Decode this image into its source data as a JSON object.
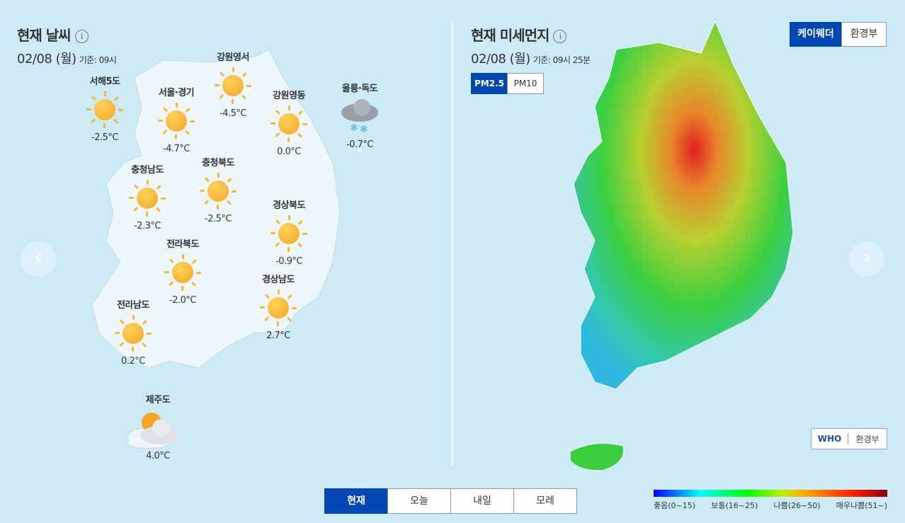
{
  "weather": {
    "title": "현재 날씨",
    "info_icon": "info-icon",
    "date": "02/08 (월)",
    "basis": "기준: 09시",
    "regions": [
      {
        "name": "서해5도",
        "temp": "-2.5°C",
        "icon": "sunny"
      },
      {
        "name": "서울·경기",
        "temp": "-4.7°C",
        "icon": "sunny"
      },
      {
        "name": "강원영서",
        "temp": "-4.5°C",
        "icon": "sunny"
      },
      {
        "name": "강원영동",
        "temp": "0.0°C",
        "icon": "sunny"
      },
      {
        "name": "울릉·독도",
        "temp": "-0.7°C",
        "icon": "cloud-snow"
      },
      {
        "name": "충청남도",
        "temp": "-2.3°C",
        "icon": "sunny"
      },
      {
        "name": "충청북도",
        "temp": "-2.5°C",
        "icon": "sunny"
      },
      {
        "name": "경상북도",
        "temp": "-0.9°C",
        "icon": "sunny"
      },
      {
        "name": "전라북도",
        "temp": "-2.0°C",
        "icon": "sunny"
      },
      {
        "name": "경상남도",
        "temp": "2.7°C",
        "icon": "sunny"
      },
      {
        "name": "전라남도",
        "temp": "0.2°C",
        "icon": "sunny"
      },
      {
        "name": "제주도",
        "temp": "4.0°C",
        "icon": "partly-cloudy"
      }
    ]
  },
  "dust": {
    "title": "현재 미세먼지",
    "date": "02/08 (월)",
    "basis": "기준: 09시 25분",
    "pm_tabs": [
      "PM2.5",
      "PM10"
    ],
    "pm_selected": "PM2.5",
    "source_tabs": [
      "케이웨더",
      "환경부"
    ],
    "source_selected": "케이웨더",
    "standard_tabs": [
      "WHO",
      "환경부"
    ],
    "standard_selected": "WHO",
    "legend": [
      "좋음(0~15)",
      "보통(16~25)",
      "나쁨(26~50)",
      "매우나쁨(51~)"
    ],
    "legend_colors": [
      "#0000ff",
      "#00ffff",
      "#00ff00",
      "#ffa500",
      "#ff0000",
      "#8b0000"
    ]
  },
  "time_tabs": [
    "현재",
    "오늘",
    "내일",
    "모레"
  ],
  "time_selected": "현재",
  "nav": {
    "prev_icon": "chevron-left-icon",
    "next_icon": "chevron-right-icon"
  }
}
